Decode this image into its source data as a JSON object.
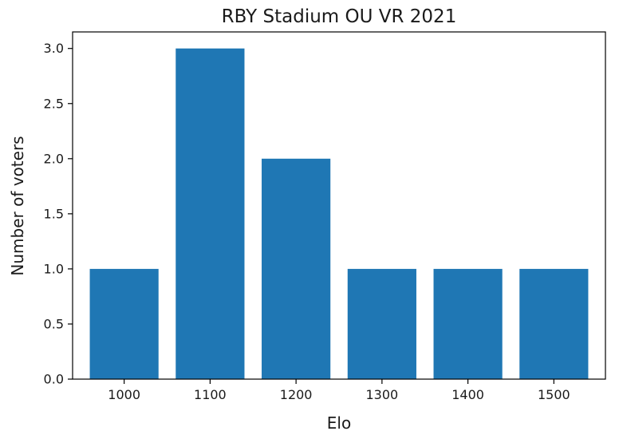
{
  "chart_data": {
    "type": "bar",
    "title": "RBY Stadium OU VR 2021",
    "xlabel": "Elo",
    "ylabel": "Number of voters",
    "categories": [
      "1000",
      "1100",
      "1200",
      "1300",
      "1400",
      "1500"
    ],
    "values": [
      1,
      3,
      2,
      1,
      1,
      1
    ],
    "ylim": [
      0,
      3.15
    ],
    "yticks": [
      "0.0",
      "0.5",
      "1.0",
      "1.5",
      "2.0",
      "2.5",
      "3.0"
    ],
    "bar_color": "#1f77b4",
    "grid": false,
    "legend": "none"
  }
}
